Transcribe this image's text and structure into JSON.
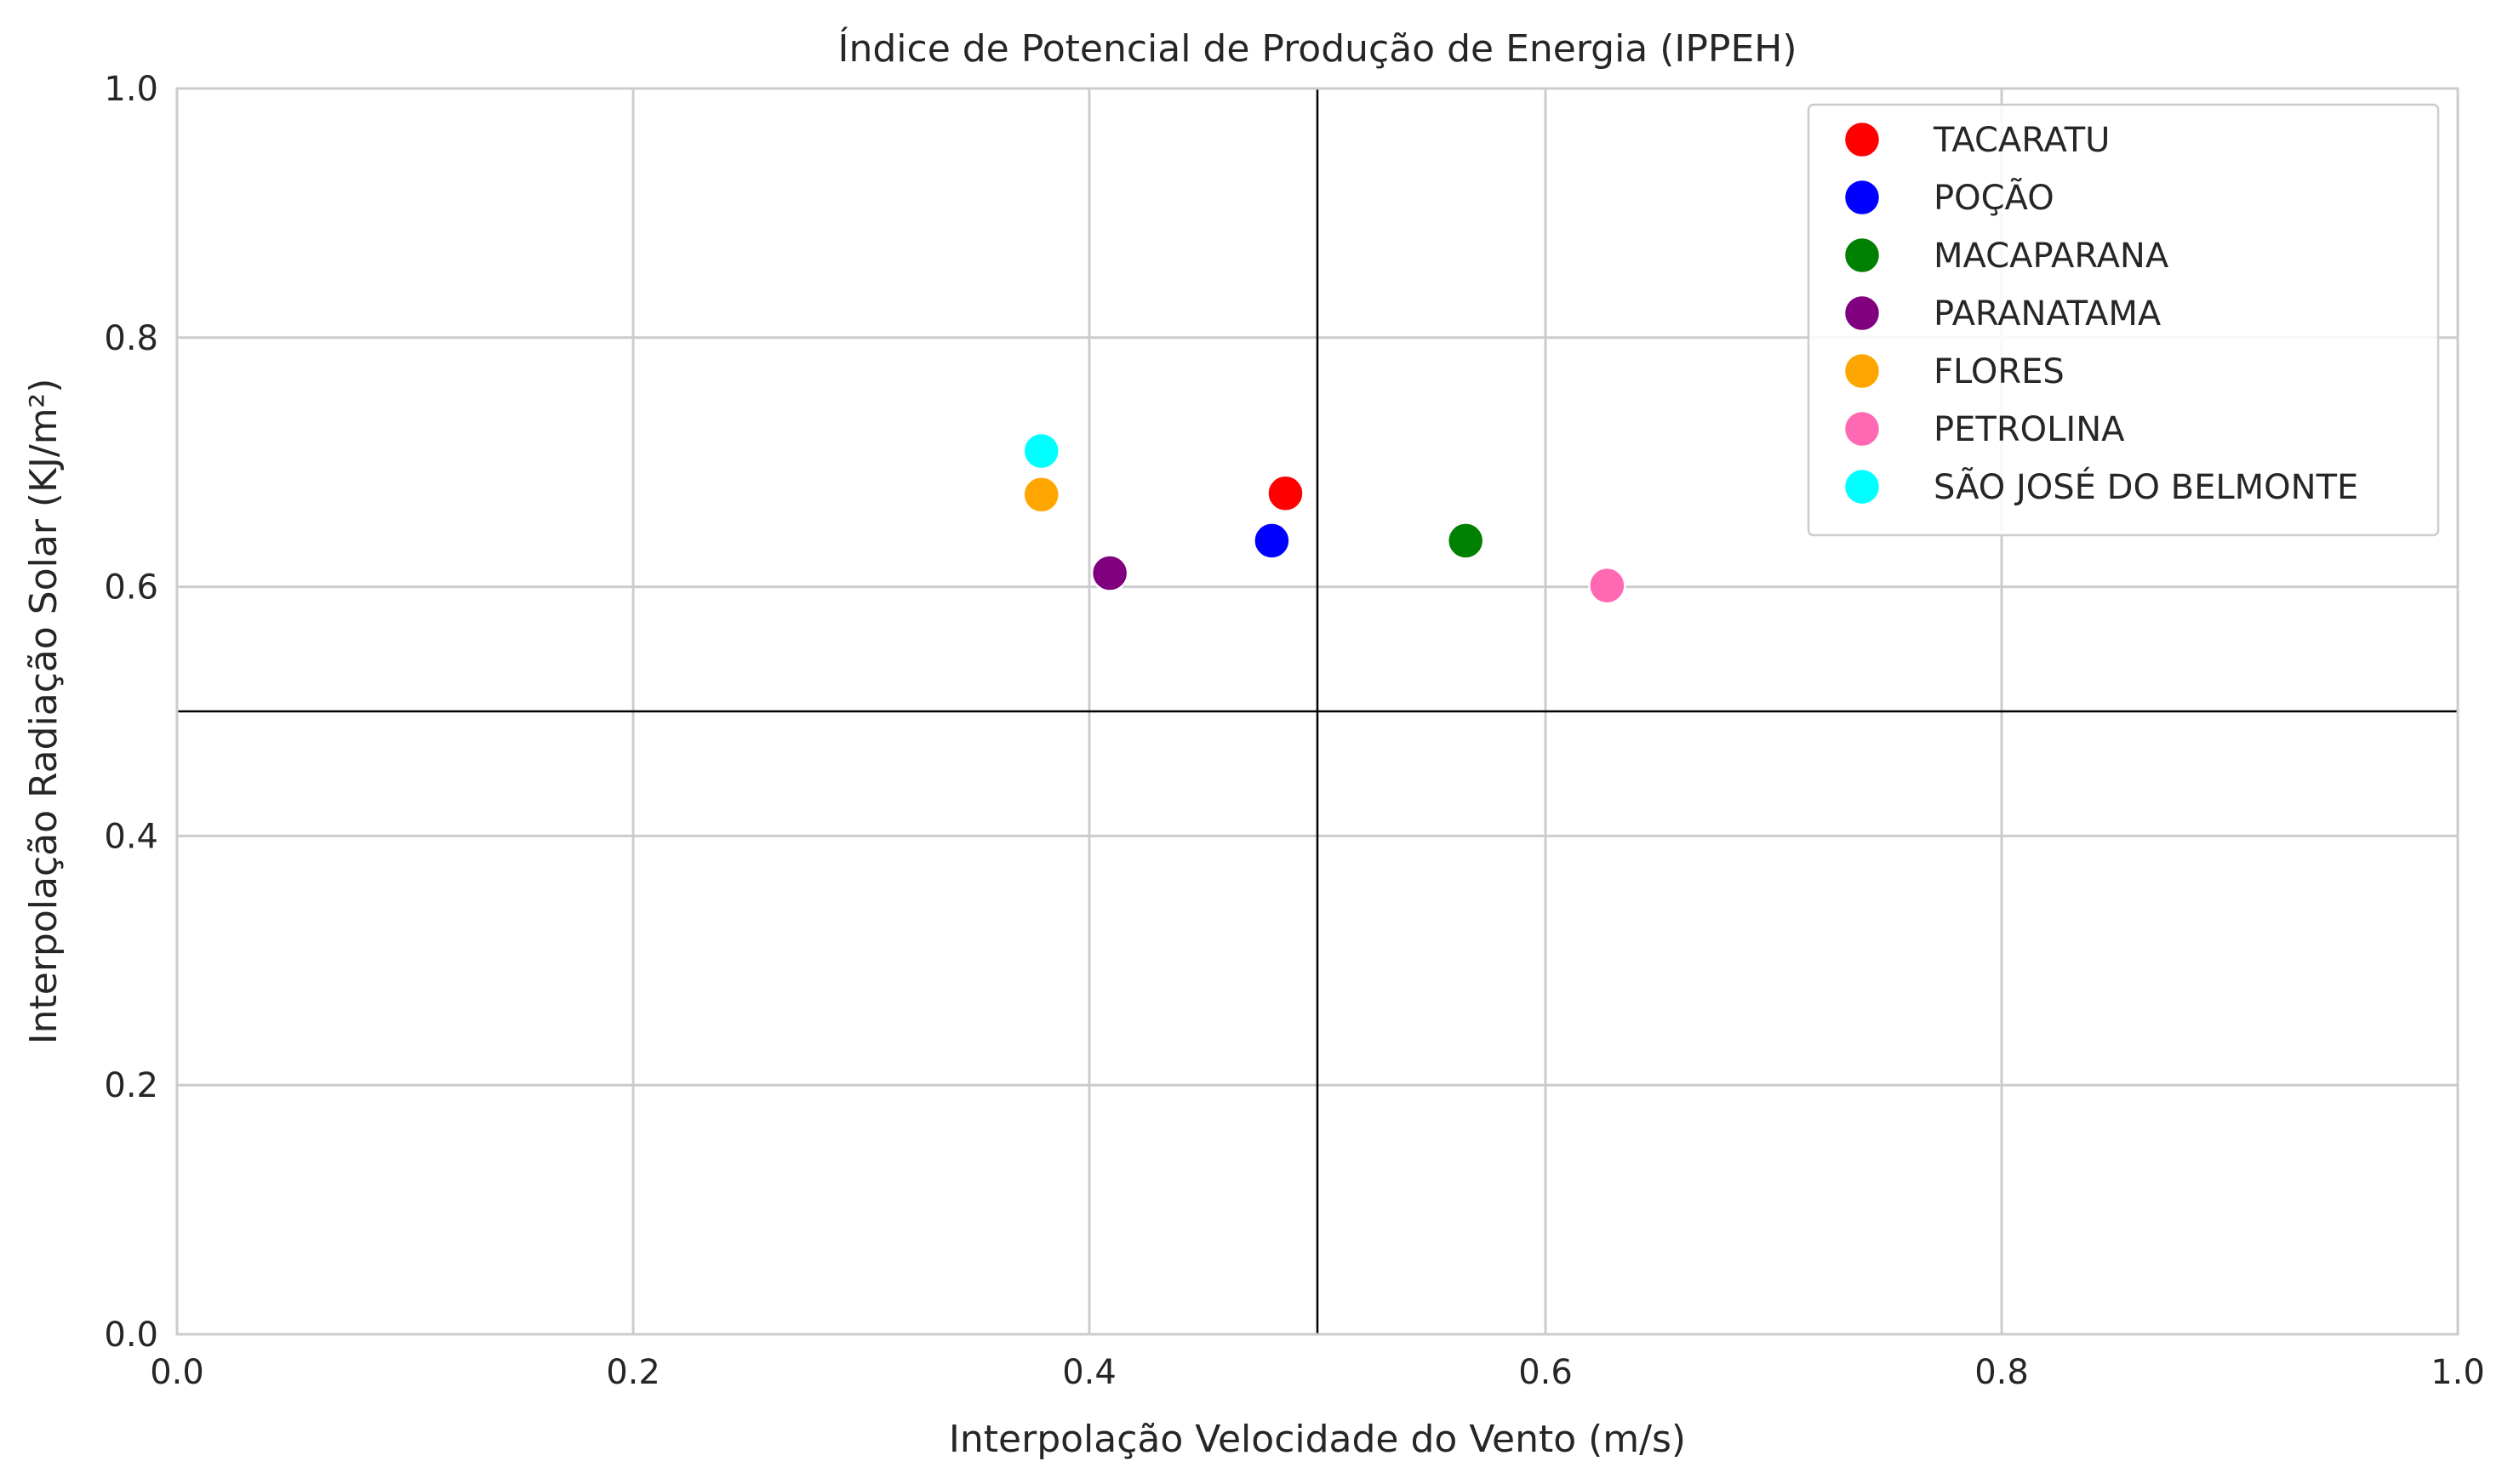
{
  "chart_data": {
    "type": "scatter",
    "title": "Índice de Potencial de Produção de Energia (IPPEH)",
    "xlabel": "Interpolação Velocidade do Vento (m/s)",
    "ylabel": "Interpolação Radiação Solar (KJ/m²)",
    "xlim": [
      0.0,
      1.0
    ],
    "ylim": [
      0.0,
      1.0
    ],
    "xticks": [
      "0.0",
      "0.2",
      "0.4",
      "0.6",
      "0.8",
      "1.0"
    ],
    "yticks": [
      "0.0",
      "0.2",
      "0.4",
      "0.6",
      "0.8",
      "1.0"
    ],
    "grid": true,
    "legend_position": "top-right",
    "reference_lines": {
      "x": 0.5,
      "y": 0.5
    },
    "series": [
      {
        "name": "TACARATU",
        "color": "#ff0000",
        "x": 0.486,
        "y": 0.675
      },
      {
        "name": "POÇÃO",
        "color": "#0000ff",
        "x": 0.48,
        "y": 0.637
      },
      {
        "name": "MACAPARANA",
        "color": "#008000",
        "x": 0.565,
        "y": 0.637
      },
      {
        "name": "PARANATAMA",
        "color": "#800080",
        "x": 0.409,
        "y": 0.611
      },
      {
        "name": "FLORES",
        "color": "#ffa500",
        "x": 0.379,
        "y": 0.674
      },
      {
        "name": "PETROLINA",
        "color": "#ff69b4",
        "x": 0.627,
        "y": 0.601
      },
      {
        "name": "SÃO JOSÉ DO BELMONTE",
        "color": "#00ffff",
        "x": 0.379,
        "y": 0.709
      }
    ]
  }
}
